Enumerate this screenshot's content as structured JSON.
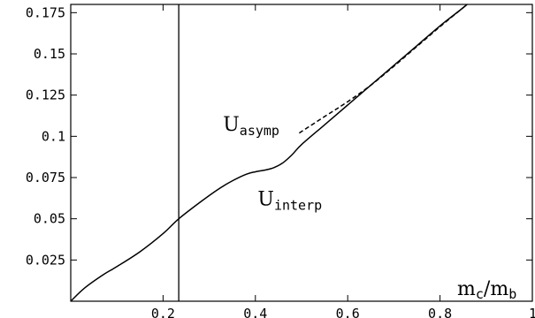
{
  "chart_data": {
    "type": "line",
    "title": "",
    "xlim": [
      0,
      1
    ],
    "ylim": [
      0,
      0.18
    ],
    "grid": false,
    "x_ticks": [
      {
        "value": 0.2,
        "label": "0.2"
      },
      {
        "value": 0.4,
        "label": "0.4"
      },
      {
        "value": 0.6,
        "label": "0.6"
      },
      {
        "value": 0.8,
        "label": "0.8"
      },
      {
        "value": 1.0,
        "label": "1"
      }
    ],
    "y_ticks": [
      {
        "value": 0.025,
        "label": "0.025"
      },
      {
        "value": 0.05,
        "label": "0.05"
      },
      {
        "value": 0.075,
        "label": "0.075"
      },
      {
        "value": 0.1,
        "label": "0.1"
      },
      {
        "value": 0.125,
        "label": "0.125"
      },
      {
        "value": 0.15,
        "label": "0.15"
      },
      {
        "value": 0.175,
        "label": "0.175"
      }
    ],
    "xlabel": {
      "main1": "m",
      "sub1": "c",
      "slash": "/",
      "main2": "m",
      "sub2": "b"
    },
    "vertical_line": {
      "x": 0.234
    },
    "series": [
      {
        "style": "solid",
        "x": [
          0.0,
          0.03,
          0.07,
          0.1,
          0.15,
          0.2,
          0.234,
          0.28,
          0.32,
          0.35,
          0.38,
          0.4,
          0.42,
          0.44,
          0.46,
          0.48,
          0.5,
          0.55,
          0.6,
          0.65,
          0.7,
          0.75,
          0.8,
          0.85,
          0.88
        ],
        "y": [
          0.0,
          0.008,
          0.016,
          0.021,
          0.03,
          0.041,
          0.05,
          0.06,
          0.068,
          0.073,
          0.077,
          0.0785,
          0.0795,
          0.081,
          0.084,
          0.089,
          0.095,
          0.107,
          0.119,
          0.131,
          0.143,
          0.155,
          0.167,
          0.178,
          0.185
        ]
      },
      {
        "style": "dashed",
        "x": [
          0.495,
          0.55,
          0.6,
          0.65,
          0.7,
          0.75,
          0.8,
          0.85,
          0.88
        ],
        "y": [
          0.102,
          0.112,
          0.121,
          0.131,
          0.1425,
          0.1545,
          0.1665,
          0.178,
          0.185
        ]
      }
    ],
    "annotations": [
      {
        "id": "asymp",
        "main": "U",
        "sub": "asymp",
        "x": 0.33,
        "y": 0.1035
      },
      {
        "id": "interp",
        "main": "U",
        "sub": "interp",
        "x": 0.405,
        "y": 0.058
      }
    ]
  }
}
